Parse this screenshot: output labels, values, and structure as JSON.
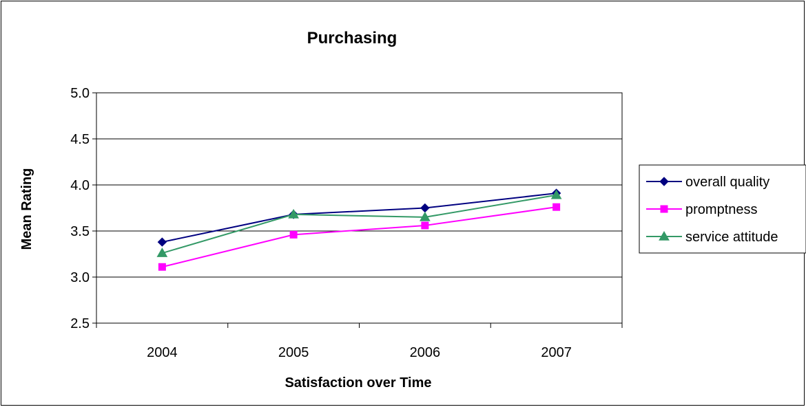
{
  "chart_data": {
    "type": "line",
    "title": "Purchasing",
    "xlabel": "Satisfaction over Time",
    "ylabel": "Mean Rating",
    "categories": [
      "2004",
      "2005",
      "2006",
      "2007"
    ],
    "ylim": [
      2.5,
      5.0
    ],
    "yticks": [
      "2.5",
      "3.0",
      "3.5",
      "4.0",
      "4.5",
      "5.0"
    ],
    "grid": true,
    "legend_position": "right",
    "series": [
      {
        "name": "overall quality",
        "values": [
          3.38,
          3.68,
          3.75,
          3.91
        ],
        "color": "#000080",
        "marker": "diamond"
      },
      {
        "name": "promptness",
        "values": [
          3.11,
          3.46,
          3.56,
          3.76
        ],
        "color": "#ff00ff",
        "marker": "square"
      },
      {
        "name": "service attitude",
        "values": [
          3.26,
          3.68,
          3.65,
          3.89
        ],
        "color": "#339966",
        "marker": "triangle"
      }
    ]
  }
}
